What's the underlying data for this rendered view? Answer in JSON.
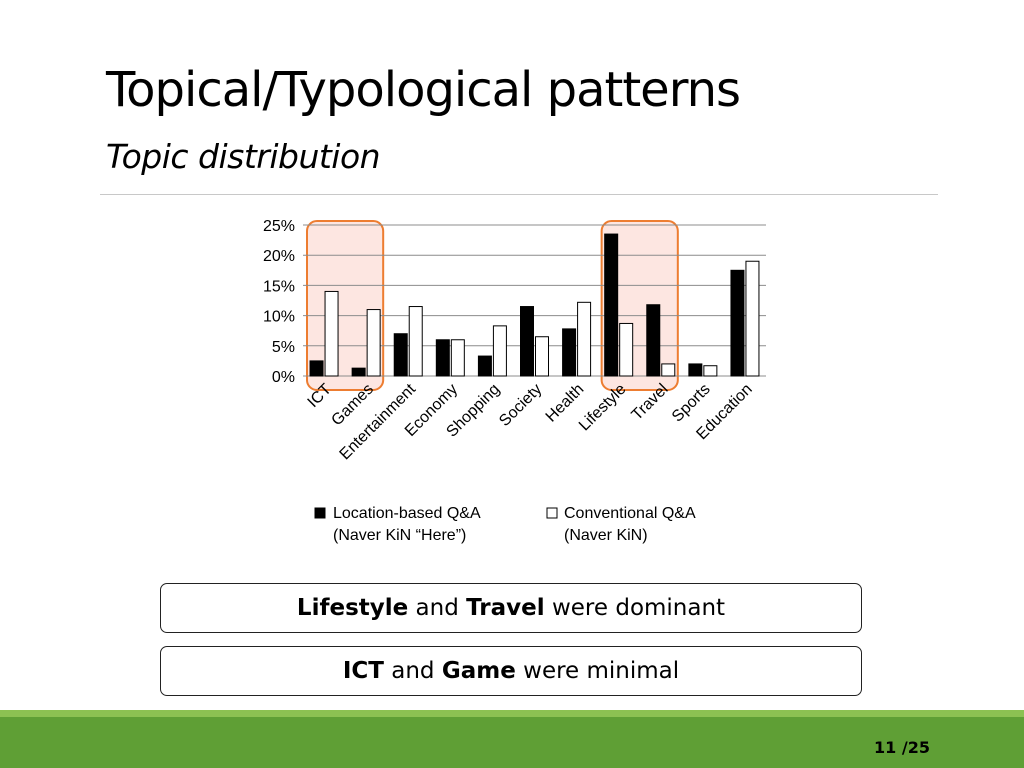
{
  "slide": {
    "title": "Topical/Typological patterns",
    "subtitle": "Topic distribution",
    "page": "11 /25"
  },
  "legend": {
    "location": "Location-based Q&A",
    "location_note": "(Naver KiN “Here”)",
    "conventional": "Conventional Q&A",
    "conventional_note": "(Naver KiN)"
  },
  "callouts": [
    {
      "b1": "Lifestyle",
      "m1": " and ",
      "b2": "Travel",
      "m2": " were dominant"
    },
    {
      "b1": "ICT",
      "m1": " and ",
      "b2": "Game",
      "m2": " were minimal"
    }
  ],
  "colors": {
    "highlight_fill": "#fde6e1",
    "highlight_stroke": "#ed7d31",
    "series_location": "#000000",
    "series_conventional": "#ffffff",
    "footer_green": "#5f9f35",
    "footer_light_green": "#8cc152"
  },
  "chart_data": {
    "type": "bar",
    "categories": [
      "ICT",
      "Games",
      "Entertainment",
      "Economy",
      "Shopping",
      "Society",
      "Health",
      "Lifestyle",
      "Travel",
      "Sports",
      "Education"
    ],
    "series": [
      {
        "name": "Location-based Q&A",
        "values": [
          2.5,
          1.3,
          7.0,
          6.0,
          3.3,
          11.5,
          7.8,
          23.5,
          11.8,
          2.0,
          17.5
        ]
      },
      {
        "name": "Conventional Q&A",
        "values": [
          14.0,
          11.0,
          11.5,
          6.0,
          8.3,
          6.5,
          12.2,
          8.7,
          2.0,
          1.7,
          19.0
        ]
      }
    ],
    "yticks": [
      "0%",
      "5%",
      "10%",
      "15%",
      "20%",
      "25%"
    ],
    "ylim": [
      0,
      25
    ],
    "grid": true,
    "legend_position": "bottom",
    "highlighted_categories": [
      "ICT",
      "Games",
      "Lifestyle",
      "Travel"
    ]
  }
}
